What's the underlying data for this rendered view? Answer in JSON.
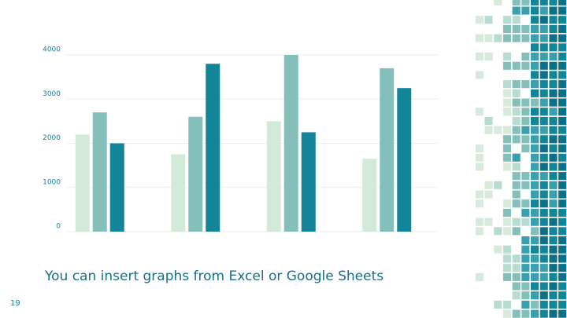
{
  "slide_number": "19",
  "caption": "You can insert graphs from Excel or Google Sheets",
  "chart_data": {
    "type": "bar",
    "categories": [
      null,
      null,
      null,
      null
    ],
    "series": [
      {
        "color": "#d3ead8",
        "values": [
          2200,
          1750,
          2500,
          1650
        ]
      },
      {
        "color": "#84c0b9",
        "values": [
          2700,
          2600,
          4000,
          3700
        ]
      },
      {
        "color": "#138598",
        "values": [
          2000,
          3800,
          2250,
          3250
        ]
      }
    ],
    "ylim": [
      0,
      4000
    ],
    "yticks": [
      0,
      1000,
      2000,
      3000,
      4000
    ],
    "grid": true
  }
}
